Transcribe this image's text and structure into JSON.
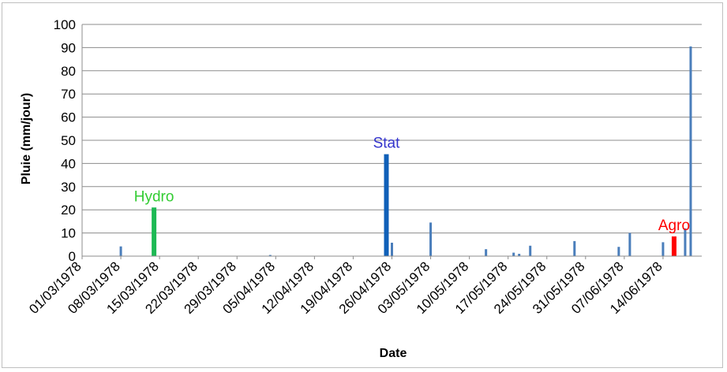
{
  "chart_data": {
    "type": "bar",
    "xlabel": "Date",
    "ylabel": "Pluie (mm/jour)",
    "ylim": [
      0,
      100
    ],
    "yticks": [
      "0",
      "10",
      "20",
      "30",
      "40",
      "50",
      "60",
      "70",
      "80",
      "90",
      "100"
    ],
    "xlim": [
      "1978-03-01",
      "1978-06-21"
    ],
    "xticks": [
      "01/03/1978",
      "08/03/1978",
      "15/03/1978",
      "22/03/1978",
      "29/03/1978",
      "05/04/1978",
      "12/04/1978",
      "19/04/1978",
      "26/04/1978",
      "03/05/1978",
      "10/05/1978",
      "17/05/1978",
      "24/05/1978",
      "31/05/1978",
      "07/06/1978",
      "14/06/1978"
    ],
    "grid": true,
    "default_color": "#4a7ebb",
    "series": [
      {
        "values": [
          {
            "x": "1978-03-08",
            "y": 4.2
          },
          {
            "x": "1978-03-14",
            "y": 21,
            "color": "#1db954",
            "label": "Hydro"
          },
          {
            "x": "1978-04-04",
            "y": 0.5
          },
          {
            "x": "1978-04-25",
            "y": 44,
            "color": "#1060b8",
            "label": "Stat"
          },
          {
            "x": "1978-04-26",
            "y": 5.8
          },
          {
            "x": "1978-05-03",
            "y": 14.5
          },
          {
            "x": "1978-05-13",
            "y": 3
          },
          {
            "x": "1978-05-18",
            "y": 1.5
          },
          {
            "x": "1978-05-19",
            "y": 1
          },
          {
            "x": "1978-05-21",
            "y": 4.5
          },
          {
            "x": "1978-05-29",
            "y": 6.5
          },
          {
            "x": "1978-06-06",
            "y": 4
          },
          {
            "x": "1978-06-08",
            "y": 10
          },
          {
            "x": "1978-06-14",
            "y": 6
          },
          {
            "x": "1978-06-16",
            "y": 8.5,
            "color": "#ff0000",
            "label": "Agro"
          },
          {
            "x": "1978-06-18",
            "y": 12
          },
          {
            "x": "1978-06-19",
            "y": 90.5
          }
        ]
      }
    ],
    "annotations": [
      {
        "text": "Hydro",
        "x": "1978-03-14",
        "y": 21,
        "color": "#33cc33"
      },
      {
        "text": "Stat",
        "x": "1978-04-25",
        "y": 44,
        "color": "#3333cc"
      },
      {
        "text": "Agro",
        "x": "1978-06-16",
        "y": 8.5,
        "color": "#ff0000"
      }
    ]
  }
}
